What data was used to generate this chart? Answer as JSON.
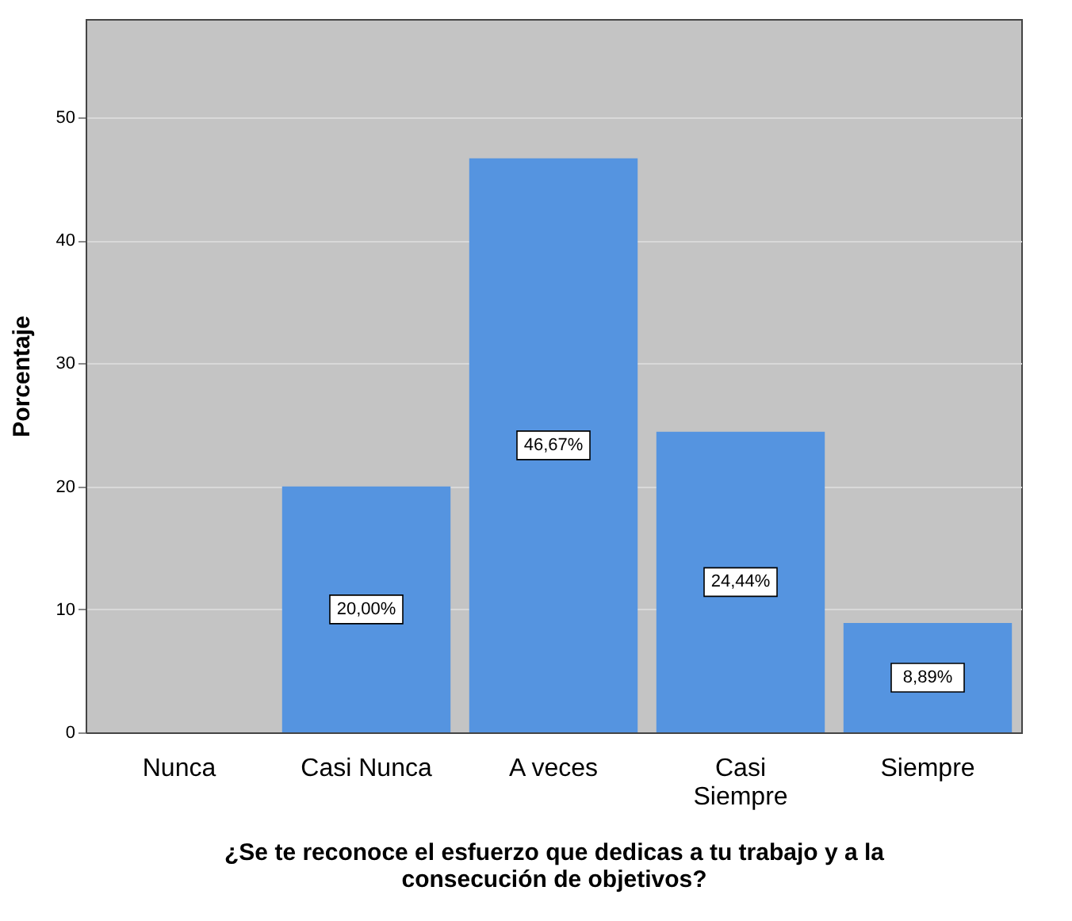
{
  "chart_data": {
    "type": "bar",
    "ylabel": "Porcentaje",
    "xlabel": "¿Se te reconoce el esfuerzo que dedicas a tu trabajo y a la consecución de objetivos?",
    "categories": [
      "Nunca",
      "Casi Nunca",
      "A veces",
      "Casi Siempre",
      "Siempre"
    ],
    "values": [
      0,
      20.0,
      46.67,
      24.44,
      8.89
    ],
    "value_labels": [
      null,
      "20,00%",
      "46,67%",
      "24,44%",
      "8,89%"
    ],
    "color": "#5594e0",
    "ylim": [
      0,
      58
    ],
    "yticks": [
      0,
      10,
      20,
      30,
      40,
      50
    ],
    "grid": "y"
  }
}
